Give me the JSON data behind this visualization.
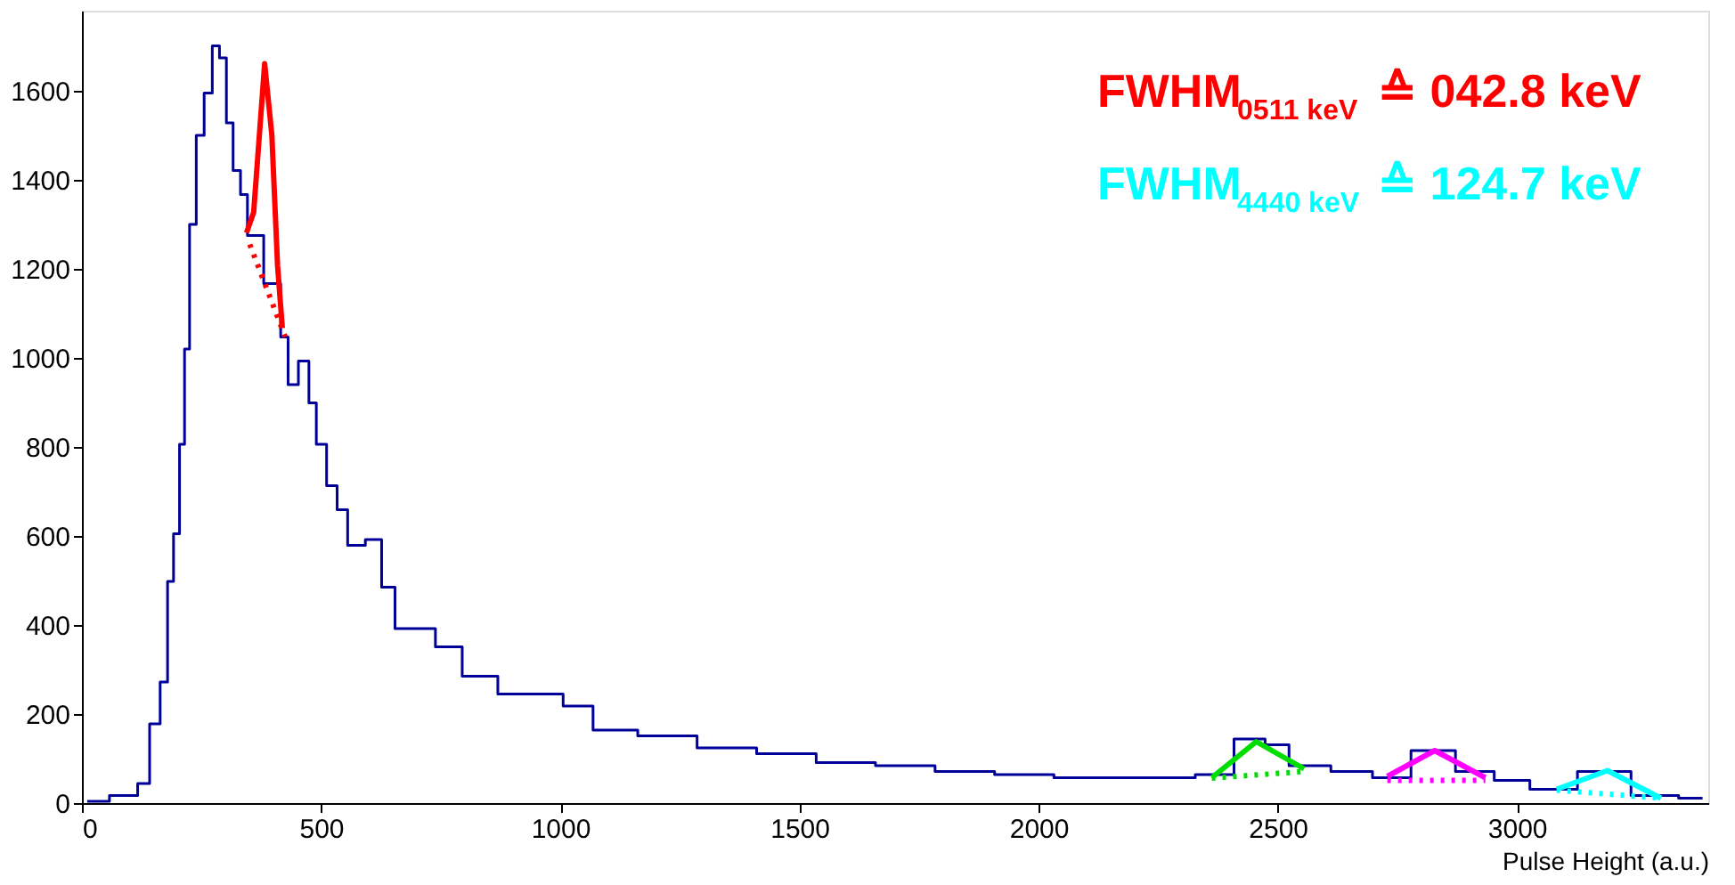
{
  "chart_data": {
    "type": "step",
    "xlabel": "Pulse Height (a.u.)",
    "xlim": [
      0,
      3400
    ],
    "ylim": [
      0,
      1780
    ],
    "xticks": [
      0,
      500,
      1000,
      1500,
      2000,
      2500,
      3000
    ],
    "yticks": [
      0,
      200,
      400,
      600,
      800,
      1000,
      1200,
      1400,
      1600
    ],
    "grid": false,
    "annotations": [
      "FWHM$_{0511 keV}$ ≙ 042.8 keV",
      "FWHM$_{4440 keV}$ ≙ 124.7 keV"
    ],
    "series": [
      {
        "color": "#000099",
        "line_style": "solid",
        "x": [
          11,
          104,
          129,
          154,
          173,
          185,
          198,
          210,
          219,
          231,
          247,
          264,
          281,
          294,
          310,
          322,
          341,
          351,
          409,
          422,
          440,
          465,
          484,
          496,
          527,
          540,
          571,
          614,
          639,
          670,
          714,
          764,
          826,
          913,
          975,
          1037,
          1100,
          1224,
          1348,
          1473,
          1597,
          1721,
          1846,
          1970,
          2094,
          2169,
          2293,
          2362,
          2455,
          2492,
          2555,
          2667,
          2729,
          2828,
          2915,
          2990,
          3064,
          3189,
          3288,
          3388
        ],
        "values": [
          4,
          17,
          44,
          178,
          272,
          498,
          605,
          806,
          1020,
          1300,
          1500,
          1595,
          1701,
          1674,
          1528,
          1421,
          1367,
          1275,
          1167,
          1047,
          940,
          993,
          899,
          806,
          713,
          659,
          579,
          592,
          485,
          392,
          392,
          351,
          285,
          245,
          245,
          218,
          164,
          151,
          124,
          111,
          91,
          84,
          71,
          64,
          57,
          57,
          57,
          64,
          144,
          131,
          84,
          71,
          57,
          118,
          71,
          51,
          31,
          71,
          17,
          11
        ]
      },
      {
        "type": "line",
        "color": "#ff0000",
        "line_style": "solid",
        "x": [
          344,
          359,
          382,
          397,
          409,
          419
        ],
        "values": [
          1281,
          1327,
          1661,
          1501,
          1207,
          1067
        ]
      },
      {
        "type": "line",
        "color": "#ff0000",
        "line_style": "dotted",
        "x": [
          351,
          425
        ],
        "values": [
          1255,
          1047
        ]
      },
      {
        "type": "line",
        "color": "#00dd00",
        "line_style": "solid",
        "x": [
          2362,
          2455,
          2555
        ],
        "values": [
          57,
          138,
          77
        ]
      },
      {
        "type": "line",
        "color": "#00dd00",
        "line_style": "dotted",
        "x": [
          2362,
          2555
        ],
        "values": [
          56,
          71
        ]
      },
      {
        "type": "line",
        "color": "#ff00ff",
        "line_style": "solid",
        "x": [
          2729,
          2828,
          2934
        ],
        "values": [
          60,
          118,
          57
        ]
      },
      {
        "type": "line",
        "color": "#ff00ff",
        "line_style": "dotted",
        "x": [
          2729,
          2934
        ],
        "values": [
          51,
          51
        ]
      },
      {
        "type": "line",
        "color": "#00ffff",
        "line_style": "solid",
        "x": [
          3083,
          3189,
          3301
        ],
        "values": [
          31,
          73,
          11
        ]
      },
      {
        "type": "line",
        "color": "#00ffff",
        "line_style": "dotted",
        "x": [
          3083,
          3301
        ],
        "values": [
          29,
          11
        ]
      }
    ]
  }
}
